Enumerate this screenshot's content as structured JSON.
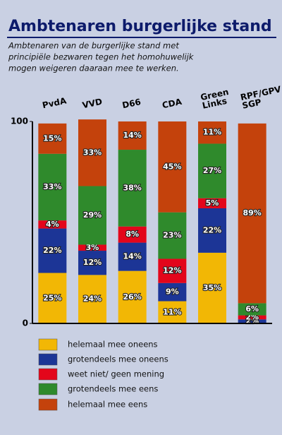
{
  "chart_data": {
    "type": "stacked_bar",
    "title": "Ambtenaren burgerlijke stand",
    "subtitle": [
      "Ambtenaren van de burgerlijke stand met",
      "principiële bezwaren tegen het homohuwelijk",
      "mogen weigeren daaraan mee te werken."
    ],
    "categories": [
      "PvdA",
      "VVD",
      "D66",
      "CDA",
      "Green Links",
      "RPF/GPV SGP"
    ],
    "ylim": [
      0,
      100
    ],
    "yticks": [
      0,
      100
    ],
    "series": [
      {
        "name": "helemaal mee oneens",
        "color": "#f2b705",
        "values": [
          25,
          24,
          26,
          11,
          35,
          0
        ],
        "value_labels": [
          "25%",
          "24%",
          "26%",
          "11%",
          "35%",
          null
        ]
      },
      {
        "name": "grotendeels mee oneens",
        "color": "#1c3596",
        "values": [
          22,
          12,
          14,
          9,
          22,
          2
        ],
        "value_labels": [
          "22%",
          "12%",
          "14%",
          "9%",
          "22%",
          "2%"
        ]
      },
      {
        "name": "weet niet/ geen mening",
        "color": "#e3061b",
        "values": [
          4,
          3,
          8,
          12,
          5,
          2
        ],
        "value_labels": [
          "4%",
          "3%",
          "8%",
          "12%",
          "5%",
          "2%"
        ]
      },
      {
        "name": "grotendeels mee eens",
        "color": "#2f8a2c",
        "values": [
          33,
          29,
          38,
          23,
          27,
          6
        ],
        "value_labels": [
          "33%",
          "29%",
          "38%",
          "23%",
          "27%",
          "6%"
        ]
      },
      {
        "name": "helemaal mee eens",
        "color": "#c4420c",
        "values": [
          15,
          33,
          14,
          45,
          11,
          89
        ],
        "value_labels": [
          "15%",
          "33%",
          "14%",
          "45%",
          "11%",
          "89%"
        ]
      }
    ]
  }
}
